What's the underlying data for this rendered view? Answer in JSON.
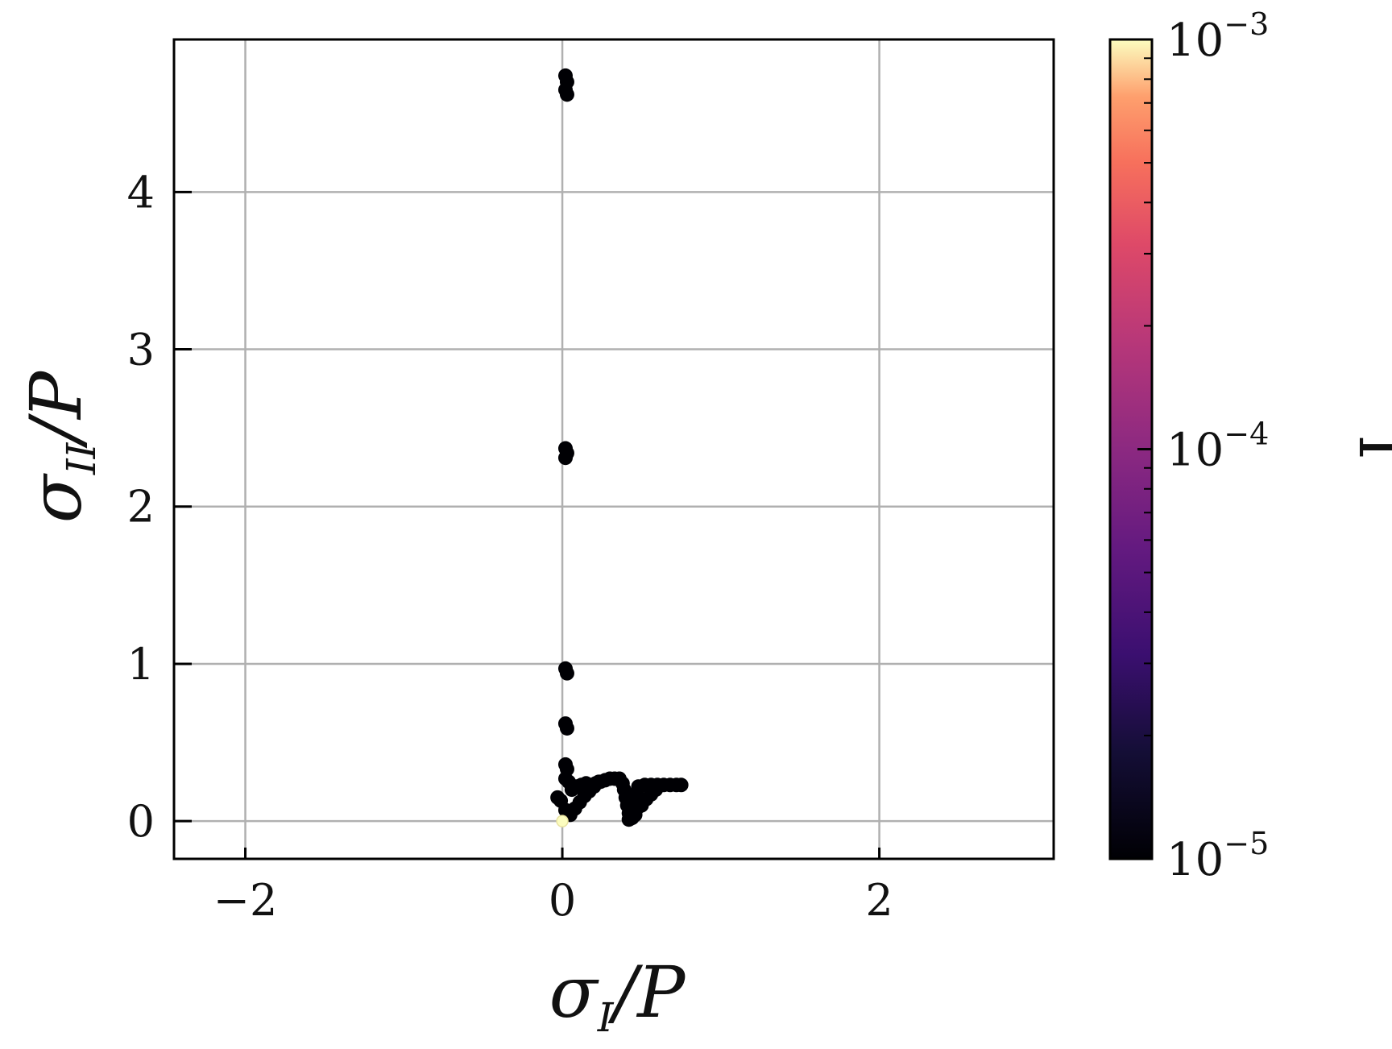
{
  "chart_data": {
    "type": "scatter",
    "xlabel": "σI/P",
    "ylabel": "σII/P",
    "colorbar_label": "I",
    "xlim": [
      -2.45,
      3.1
    ],
    "ylim": [
      -0.24,
      4.97
    ],
    "xticks": [
      -2,
      0,
      2
    ],
    "xtick_labels": [
      "−2",
      "0",
      "2"
    ],
    "yticks": [
      0,
      1,
      2,
      3,
      4
    ],
    "ytick_labels": [
      "0",
      "1",
      "2",
      "3",
      "4"
    ],
    "grid": true,
    "colorbar": {
      "scale": "log",
      "range": [
        1e-05,
        0.001
      ],
      "colormap": "magma",
      "ticks": [
        {
          "value": 1e-05,
          "base": "10",
          "exp": "−5"
        },
        {
          "value": 0.0001,
          "base": "10",
          "exp": "−4"
        },
        {
          "value": 0.001,
          "base": "10",
          "exp": "−3"
        }
      ]
    },
    "colors": {
      "point": "#000004",
      "highlight": "#fcfdbf",
      "grid": "#b0b0b0"
    },
    "points": [
      {
        "x": 0.02,
        "y": 4.74,
        "c": 1e-05
      },
      {
        "x": 0.03,
        "y": 4.7,
        "c": 1e-05
      },
      {
        "x": 0.02,
        "y": 4.65,
        "c": 1e-05
      },
      {
        "x": 0.03,
        "y": 4.62,
        "c": 1e-05
      },
      {
        "x": 0.02,
        "y": 2.37,
        "c": 1e-05
      },
      {
        "x": 0.03,
        "y": 2.34,
        "c": 1e-05
      },
      {
        "x": 0.02,
        "y": 2.31,
        "c": 1e-05
      },
      {
        "x": 0.02,
        "y": 0.97,
        "c": 1e-05
      },
      {
        "x": 0.03,
        "y": 0.94,
        "c": 1e-05
      },
      {
        "x": 0.02,
        "y": 0.62,
        "c": 1e-05
      },
      {
        "x": 0.03,
        "y": 0.59,
        "c": 1e-05
      },
      {
        "x": 0.02,
        "y": 0.36,
        "c": 1e-05
      },
      {
        "x": 0.03,
        "y": 0.33,
        "c": 1e-05
      },
      {
        "x": 0.02,
        "y": 0.27,
        "c": 1e-05
      },
      {
        "x": 0.04,
        "y": 0.25,
        "c": 1e-05
      },
      {
        "x": -0.03,
        "y": 0.15,
        "c": 1e-05
      },
      {
        "x": -0.01,
        "y": 0.13,
        "c": 1e-05
      },
      {
        "x": 0.02,
        "y": 0.07,
        "c": 1e-05
      },
      {
        "x": 0.05,
        "y": 0.04,
        "c": 1e-05
      },
      {
        "x": 0.08,
        "y": 0.08,
        "c": 1e-05
      },
      {
        "x": 0.11,
        "y": 0.12,
        "c": 1e-05
      },
      {
        "x": 0.14,
        "y": 0.16,
        "c": 1e-05
      },
      {
        "x": 0.17,
        "y": 0.19,
        "c": 1e-05
      },
      {
        "x": 0.2,
        "y": 0.22,
        "c": 1e-05
      },
      {
        "x": 0.23,
        "y": 0.25,
        "c": 1e-05
      },
      {
        "x": 0.06,
        "y": 0.2,
        "c": 1e-05
      },
      {
        "x": 0.09,
        "y": 0.22,
        "c": 1e-05
      },
      {
        "x": 0.12,
        "y": 0.23,
        "c": 1e-05
      },
      {
        "x": 0.15,
        "y": 0.24,
        "c": 1e-05
      },
      {
        "x": 0.18,
        "y": 0.23,
        "c": 1e-05
      },
      {
        "x": 0.21,
        "y": 0.24,
        "c": 1e-05
      },
      {
        "x": 0.24,
        "y": 0.25,
        "c": 1e-05
      },
      {
        "x": 0.27,
        "y": 0.26,
        "c": 1e-05
      },
      {
        "x": 0.3,
        "y": 0.27,
        "c": 1e-05
      },
      {
        "x": 0.33,
        "y": 0.27,
        "c": 1e-05
      },
      {
        "x": 0.36,
        "y": 0.27,
        "c": 1e-05
      },
      {
        "x": 0.38,
        "y": 0.24,
        "c": 1e-05
      },
      {
        "x": 0.39,
        "y": 0.2,
        "c": 1e-05
      },
      {
        "x": 0.4,
        "y": 0.15,
        "c": 1e-05
      },
      {
        "x": 0.41,
        "y": 0.1,
        "c": 1e-05
      },
      {
        "x": 0.42,
        "y": 0.05,
        "c": 1e-05
      },
      {
        "x": 0.42,
        "y": 0.01,
        "c": 1e-05
      },
      {
        "x": 0.44,
        "y": 0.02,
        "c": 1e-05
      },
      {
        "x": 0.46,
        "y": 0.04,
        "c": 1e-05
      },
      {
        "x": 0.47,
        "y": 0.08,
        "c": 1e-05
      },
      {
        "x": 0.47,
        "y": 0.13,
        "c": 1e-05
      },
      {
        "x": 0.47,
        "y": 0.18,
        "c": 1e-05
      },
      {
        "x": 0.48,
        "y": 0.22,
        "c": 1e-05
      },
      {
        "x": 0.5,
        "y": 0.1,
        "c": 1e-05
      },
      {
        "x": 0.53,
        "y": 0.14,
        "c": 1e-05
      },
      {
        "x": 0.56,
        "y": 0.17,
        "c": 1e-05
      },
      {
        "x": 0.59,
        "y": 0.2,
        "c": 1e-05
      },
      {
        "x": 0.52,
        "y": 0.23,
        "c": 1e-05
      },
      {
        "x": 0.56,
        "y": 0.23,
        "c": 1e-05
      },
      {
        "x": 0.6,
        "y": 0.23,
        "c": 1e-05
      },
      {
        "x": 0.64,
        "y": 0.23,
        "c": 1e-05
      },
      {
        "x": 0.68,
        "y": 0.23,
        "c": 1e-05
      },
      {
        "x": 0.72,
        "y": 0.23,
        "c": 1e-05
      },
      {
        "x": 0.75,
        "y": 0.23,
        "c": 1e-05
      },
      {
        "x": 0.0,
        "y": 0.0,
        "c": 0.001
      }
    ]
  }
}
